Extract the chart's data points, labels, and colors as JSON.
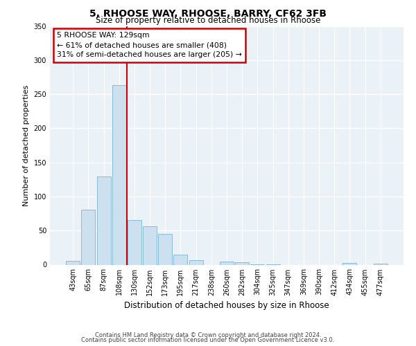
{
  "title1": "5, RHOOSE WAY, RHOOSE, BARRY, CF62 3FB",
  "title2": "Size of property relative to detached houses in Rhoose",
  "xlabel": "Distribution of detached houses by size in Rhoose",
  "ylabel": "Number of detached properties",
  "bar_labels": [
    "43sqm",
    "65sqm",
    "87sqm",
    "108sqm",
    "130sqm",
    "152sqm",
    "173sqm",
    "195sqm",
    "217sqm",
    "238sqm",
    "260sqm",
    "282sqm",
    "304sqm",
    "325sqm",
    "347sqm",
    "369sqm",
    "390sqm",
    "412sqm",
    "434sqm",
    "455sqm",
    "477sqm"
  ],
  "bar_heights": [
    6,
    81,
    129,
    263,
    65,
    56,
    45,
    15,
    7,
    0,
    5,
    4,
    1,
    1,
    0,
    0,
    0,
    0,
    3,
    0,
    2
  ],
  "bar_color": "#cce0f0",
  "bar_edge_color": "#88bbd8",
  "vline_color": "#cc0000",
  "ylim": [
    0,
    350
  ],
  "yticks": [
    0,
    50,
    100,
    150,
    200,
    250,
    300,
    350
  ],
  "annotation_text": "5 RHOOSE WAY: 129sqm\n← 61% of detached houses are smaller (408)\n31% of semi-detached houses are larger (205) →",
  "annotation_box_color": "#ffffff",
  "annotation_box_edge": "#cc0000",
  "footer1": "Contains HM Land Registry data © Crown copyright and database right 2024.",
  "footer2": "Contains public sector information licensed under the Open Government Licence v3.0.",
  "plot_bg_color": "#eaf2f8"
}
